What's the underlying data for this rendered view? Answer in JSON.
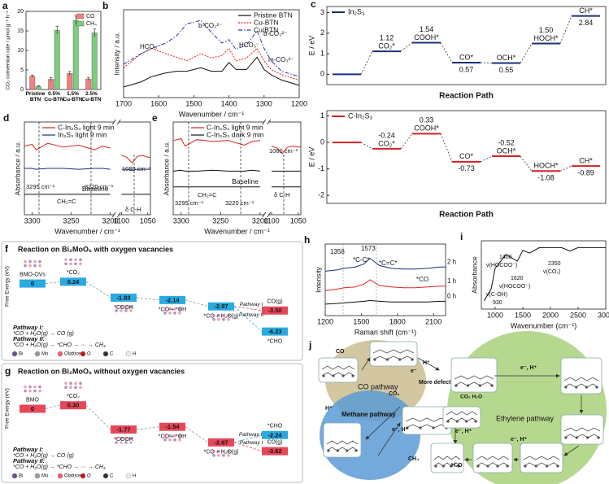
{
  "chart_data": [
    {
      "panel": "a",
      "type": "bar",
      "ylabel": "CO₂ conversion rate / μmol g⁻¹ h⁻¹",
      "categories": [
        "Pristine BTN",
        "0.5% Cu-BTN",
        "1.5% Cu-BTN",
        "2.5% Cu-BTN"
      ],
      "series": [
        {
          "name": "CO",
          "color": "#f08080",
          "values": [
            3.4,
            2.6,
            4.1,
            2.7
          ],
          "errors": [
            0.3,
            0.4,
            0.5,
            0.4
          ]
        },
        {
          "name": "CH₄",
          "color": "#7ccd7c",
          "values": [
            0.8,
            15.2,
            17.7,
            14.5
          ],
          "errors": [
            0.2,
            1.0,
            1.1,
            1.0
          ]
        }
      ],
      "ylim": [
        0,
        20
      ],
      "yticks": [
        0,
        5,
        10,
        15,
        20
      ],
      "legend": "upper right"
    },
    {
      "panel": "b",
      "type": "line",
      "xlabel": "Wavenumber / cm⁻¹",
      "ylabel": "Intensity / a.u.",
      "x": [
        1700,
        1650,
        1620,
        1580,
        1550,
        1520,
        1480,
        1450,
        1420,
        1400,
        1380,
        1350,
        1320,
        1300,
        1280,
        1250,
        1200
      ],
      "xlim": [
        1700,
        1200
      ],
      "xticks": [
        1700,
        1600,
        1500,
        1400,
        1300,
        1200
      ],
      "ylim": [
        0,
        1
      ],
      "series": [
        {
          "name": "Pristine BTN",
          "color": "#111111",
          "linestyle": "solid",
          "values": [
            0.12,
            0.18,
            0.24,
            0.28,
            0.3,
            0.3,
            0.34,
            0.3,
            0.3,
            0.4,
            0.32,
            0.32,
            0.46,
            0.32,
            0.26,
            0.2,
            0.14
          ]
        },
        {
          "name": "Cu-BTN",
          "color": "#e02020",
          "linestyle": "dotted",
          "values": [
            0.34,
            0.5,
            0.56,
            0.5,
            0.46,
            0.42,
            0.5,
            0.45,
            0.48,
            0.56,
            0.42,
            0.45,
            0.56,
            0.42,
            0.32,
            0.26,
            0.2
          ]
        },
        {
          "name": "Cu/BTN",
          "color": "#2a3a9a",
          "linestyle": "dashdot",
          "values": [
            0.38,
            0.5,
            0.56,
            0.62,
            0.7,
            0.84,
            0.88,
            0.74,
            0.62,
            0.66,
            0.55,
            0.6,
            0.76,
            0.56,
            0.42,
            0.3,
            0.24
          ]
        }
      ],
      "annotations": [
        "HCO₃⁻",
        "b-CO₃²⁻",
        "HCO₃⁻",
        "b-CO₃²⁻",
        "m-CO₃²⁻"
      ],
      "legend": "upper right"
    },
    {
      "panel": "c",
      "type": "energy_levels",
      "name": "In₂S₃",
      "color": "#1c2f7a",
      "ylabel": "E / eV",
      "xlabel": "Reaction Path",
      "categories": [
        null,
        "CO₂*",
        "COOH*",
        "CO*",
        "OCH*",
        "HOCH*",
        "CH*"
      ],
      "values": [
        0,
        1.12,
        1.54,
        0.57,
        0.55,
        1.5,
        2.84
      ],
      "value_labels": [
        null,
        "1.12",
        "1.54",
        "0.57",
        "0.55",
        "1.50",
        "2.84"
      ],
      "ylim": [
        -0.5,
        3.3
      ],
      "yticks": [
        0,
        1,
        2,
        3
      ],
      "legend": "upper left"
    },
    {
      "type": "energy_levels",
      "name": "C-In₂S₃",
      "color": "#d42020",
      "ylabel": "E / eV",
      "xlabel": "Reaction Path",
      "categories": [
        null,
        "CO₂*",
        "COOH*",
        "CO*",
        "OCH*",
        "HOCH*",
        "CH*"
      ],
      "values": [
        0,
        -0.24,
        0.33,
        -0.73,
        -0.52,
        -1.08,
        -0.89
      ],
      "value_labels": [
        null,
        "-0.24",
        "0.33",
        "-0.73",
        "-0.52",
        "-1.08",
        "-0.89"
      ],
      "ylim": [
        -2.3,
        1.2
      ],
      "yticks": [
        1,
        0,
        -1,
        -2
      ],
      "legend": "upper left"
    },
    {
      "panel": "d",
      "type": "line",
      "xlabel": "Wavenumber / cm⁻¹",
      "ylabel": "Absorbance / a.u.",
      "x": [
        3310,
        3300,
        3295,
        3280,
        3260,
        3240,
        3220,
        3210,
        3200,
        1100,
        1090,
        1080,
        1070,
        1060,
        1050,
        1045
      ],
      "xsegments": [
        {
          "xlim": [
            3310,
            3195
          ],
          "xticks": [
            3300,
            3250,
            3200
          ]
        },
        {
          "xlim": [
            1105,
            1045
          ],
          "xticks": [
            1100,
            1050
          ]
        }
      ],
      "ylim": [
        0,
        1
      ],
      "series": [
        {
          "name": "C-In₂S₃ light 9 min",
          "color": "#e02020",
          "values": [
            0.74,
            0.76,
            0.7,
            0.77,
            0.73,
            0.75,
            0.7,
            0.74,
            0.72,
            0.64,
            0.62,
            0.56,
            0.63,
            0.64,
            0.62,
            0.62
          ]
        },
        {
          "name": "In₂S₃ light 9 min",
          "color": "#1c2f7a",
          "values": [
            0.5,
            0.5,
            0.49,
            0.5,
            0.5,
            0.49,
            0.5,
            0.5,
            0.49,
            0.49,
            0.49,
            0.48,
            0.49,
            0.49,
            0.49,
            0.49
          ]
        },
        {
          "name": "Baseline",
          "color": "#111111",
          "inline": true,
          "values": [
            0.22,
            0.22,
            0.22,
            0.22,
            0.22,
            0.22,
            0.22,
            0.22,
            0.22,
            0.22,
            0.22,
            0.22,
            0.22,
            0.22,
            0.22,
            0.22
          ]
        }
      ],
      "annotations": [
        "3295 cm⁻¹",
        "3220 cm⁻¹",
        "CH₂=C",
        "1080 cm⁻¹",
        "δ C-H"
      ],
      "legend": "upper center"
    },
    {
      "panel": "e",
      "type": "line",
      "xlabel": "Wavenumber / cm⁻¹",
      "ylabel": "Absorbance / a.u.",
      "x": [
        3310,
        3300,
        3295,
        3280,
        3260,
        3240,
        3220,
        3210,
        3200,
        1100,
        1090,
        1080,
        1070,
        1060,
        1050,
        1045
      ],
      "xsegments": [
        {
          "xlim": [
            3310,
            3195
          ],
          "xticks": [
            3300,
            3250,
            3200
          ]
        },
        {
          "xlim": [
            1105,
            1045
          ],
          "xticks": [
            1100,
            1050
          ]
        }
      ],
      "ylim": [
        0,
        1
      ],
      "series": [
        {
          "name": "C-In₂S₃ light 9 min",
          "color": "#e02020",
          "values": [
            0.8,
            0.82,
            0.74,
            0.81,
            0.79,
            0.8,
            0.75,
            0.79,
            0.8,
            0.74,
            0.72,
            0.66,
            0.73,
            0.74,
            0.73,
            0.73
          ]
        },
        {
          "name": "C-In₂S₃ dark 9 min",
          "color": "#111111",
          "values": [
            0.47,
            0.48,
            0.47,
            0.47,
            0.48,
            0.47,
            0.47,
            0.48,
            0.47,
            0.47,
            0.47,
            0.47,
            0.47,
            0.47,
            0.47,
            0.47
          ]
        },
        {
          "name": "Baseline",
          "color": "#111111",
          "inline": true,
          "values": [
            0.3,
            0.3,
            0.3,
            0.3,
            0.3,
            0.3,
            0.3,
            0.3,
            0.3,
            0.3,
            0.3,
            0.3,
            0.3,
            0.3,
            0.3,
            0.3
          ]
        }
      ],
      "annotations": [
        "3295 cm⁻¹",
        "3220 cm⁻¹",
        "CH₂=C",
        "1080 cm⁻¹",
        "δ C-H"
      ],
      "legend": "upper center"
    },
    {
      "panel": "f",
      "type": "free_energy",
      "title": "Reaction on Bi₂MoO₆ with oxygen vacancies",
      "title_color": "#1a9bd7",
      "ylabel": "Free Energy (eV)",
      "categories": [
        "BMO-OVs",
        "*CO₂",
        "*COOH",
        "*CO + *OH",
        "*CO + H₂O(g)",
        "CO(g)",
        "*CHO"
      ],
      "values": [
        0,
        0.24,
        -1.83,
        -2.14,
        -2.97,
        -3.5,
        -6.23
      ],
      "value_labels": [
        "0",
        "0.24",
        "-1.83",
        "-2.14",
        "-2.97",
        "-3.50",
        "-6.23"
      ],
      "colors": [
        "#29abe2",
        "#29abe2",
        "#29abe2",
        "#29abe2",
        "#29abe2",
        "#e8475a",
        "#29abe2"
      ],
      "branch_labels": [
        "Pathway I",
        "Pathway II"
      ],
      "pathways": [
        {
          "name": "Pathway I:",
          "text": "*CO + H₂O(g) → CO (g)",
          "color": "#e03030"
        },
        {
          "name": "Pathway II:",
          "text": "*CO + H₂O(g) → *CHO → ··· → CH₄",
          "color": "#1a9bd7"
        }
      ],
      "atoms": [
        {
          "name": "Bi",
          "color": "#6a4c9c"
        },
        {
          "name": "Mo",
          "color": "#9a9a9a"
        },
        {
          "name": "Olattice",
          "color": "#f06070"
        },
        {
          "name": "O",
          "color": "#d01010"
        },
        {
          "name": "C",
          "color": "#333333"
        },
        {
          "name": "H",
          "color": "#eeeeee"
        }
      ],
      "ylim": [
        -6.8,
        0.8
      ]
    },
    {
      "panel": "g",
      "type": "free_energy",
      "title": "Reaction on Bi₂MoO₆ without oxygen vacancies",
      "title_color": "#e03040",
      "ylabel": "Free Energy (eV)",
      "categories": [
        "BMO",
        "*CO₂",
        "*COOH",
        "*CO + *OH",
        "*CO + H₂O(g)",
        "*CHO",
        "CO(g)"
      ],
      "values": [
        0,
        0.3,
        -1.77,
        -1.54,
        -2.87,
        -2.24,
        -3.62
      ],
      "value_labels": [
        "0",
        "0.30",
        "-1.77",
        "-1.54",
        "-2.87",
        "-2.24",
        "-3.62"
      ],
      "colors": [
        "#e8475a",
        "#e8475a",
        "#e8475a",
        "#e8475a",
        "#e8475a",
        "#29abe2",
        "#e8475a"
      ],
      "branch_labels": [
        "Pathway II",
        "Pathway I"
      ],
      "pathways": [
        {
          "name": "Pathway I:",
          "text": "*CO + H₂O(g) → CO (g)",
          "color": "#e03030"
        },
        {
          "name": "Pathway II:",
          "text": "*CO + H₂O(g) → *CHO → ··· → CH₄",
          "color": "#1a9bd7"
        }
      ],
      "atoms": [
        {
          "name": "Bi",
          "color": "#6a4c9c"
        },
        {
          "name": "Mo",
          "color": "#9a9a9a"
        },
        {
          "name": "Olattice",
          "color": "#f06070"
        },
        {
          "name": "O",
          "color": "#d01010"
        },
        {
          "name": "C",
          "color": "#333333"
        },
        {
          "name": "H",
          "color": "#eeeeee"
        }
      ],
      "ylim": [
        -4.2,
        0.8
      ]
    },
    {
      "panel": "h",
      "type": "line",
      "xlabel": "Raman shift (cm⁻¹)",
      "ylabel": "Intensity",
      "x": [
        1200,
        1300,
        1358,
        1450,
        1520,
        1573,
        1650,
        1750,
        1850,
        1950,
        2050,
        2150,
        2200
      ],
      "xlim": [
        1200,
        2200
      ],
      "xticks": [
        1200,
        1500,
        1800,
        2100
      ],
      "ylim": [
        0,
        1
      ],
      "series": [
        {
          "name": "2 h",
          "color": "#1c2f7a",
          "values": [
            0.62,
            0.64,
            0.66,
            0.68,
            0.72,
            0.8,
            0.7,
            0.66,
            0.65,
            0.65,
            0.66,
            0.68,
            0.68
          ]
        },
        {
          "name": "1 h",
          "color": "#e02020",
          "values": [
            0.35,
            0.37,
            0.39,
            0.4,
            0.44,
            0.5,
            0.42,
            0.4,
            0.39,
            0.39,
            0.4,
            0.41,
            0.41
          ]
        },
        {
          "name": "0 h",
          "color": "#111111",
          "values": [
            0.16,
            0.17,
            0.18,
            0.19,
            0.2,
            0.21,
            0.2,
            0.19,
            0.19,
            0.19,
            0.19,
            0.2,
            0.2
          ]
        }
      ],
      "annotations": [
        "1358",
        "1573",
        "*C-C*",
        "*C=C*",
        "*CO"
      ],
      "legend": "inline"
    },
    {
      "panel": "i",
      "type": "line",
      "xlabel": "Wavenumber (cm⁻¹)",
      "ylabel": "Absorbance",
      "x": [
        800,
        930,
        1000,
        1200,
        1400,
        1500,
        1620,
        1800,
        2000,
        2200,
        2350,
        2500,
        2800,
        3000
      ],
      "xlim": [
        750,
        3000
      ],
      "xticks": [
        1000,
        1500,
        2000,
        2500,
        3000
      ],
      "ylim": [
        0,
        1
      ],
      "series": [
        {
          "color": "#111111",
          "values": [
            0.12,
            0.3,
            0.6,
            0.8,
            0.7,
            0.86,
            0.82,
            0.9,
            0.9,
            0.9,
            0.85,
            0.9,
            0.9,
            0.9
          ]
        }
      ],
      "annotations": [
        "1400",
        "ν(HOCOO⁻)",
        "1620",
        "ν(HOCOO⁻)",
        "2350",
        "ν(CO₂)",
        "ν(C-OH)",
        "930"
      ]
    }
  ],
  "diagram": {
    "panel": "j",
    "labels": [
      "CO pathway",
      "Methane pathway",
      "Ethylene pathway",
      "More defect",
      "CO",
      "CO₂",
      "H⁺",
      "e⁻",
      "H⁺",
      "CH₄",
      "e⁻, H⁺",
      "CO₂ H₂O",
      "e⁻, H⁺",
      "e⁻, H⁺",
      "H₂O",
      "e⁻, H⁺"
    ]
  }
}
